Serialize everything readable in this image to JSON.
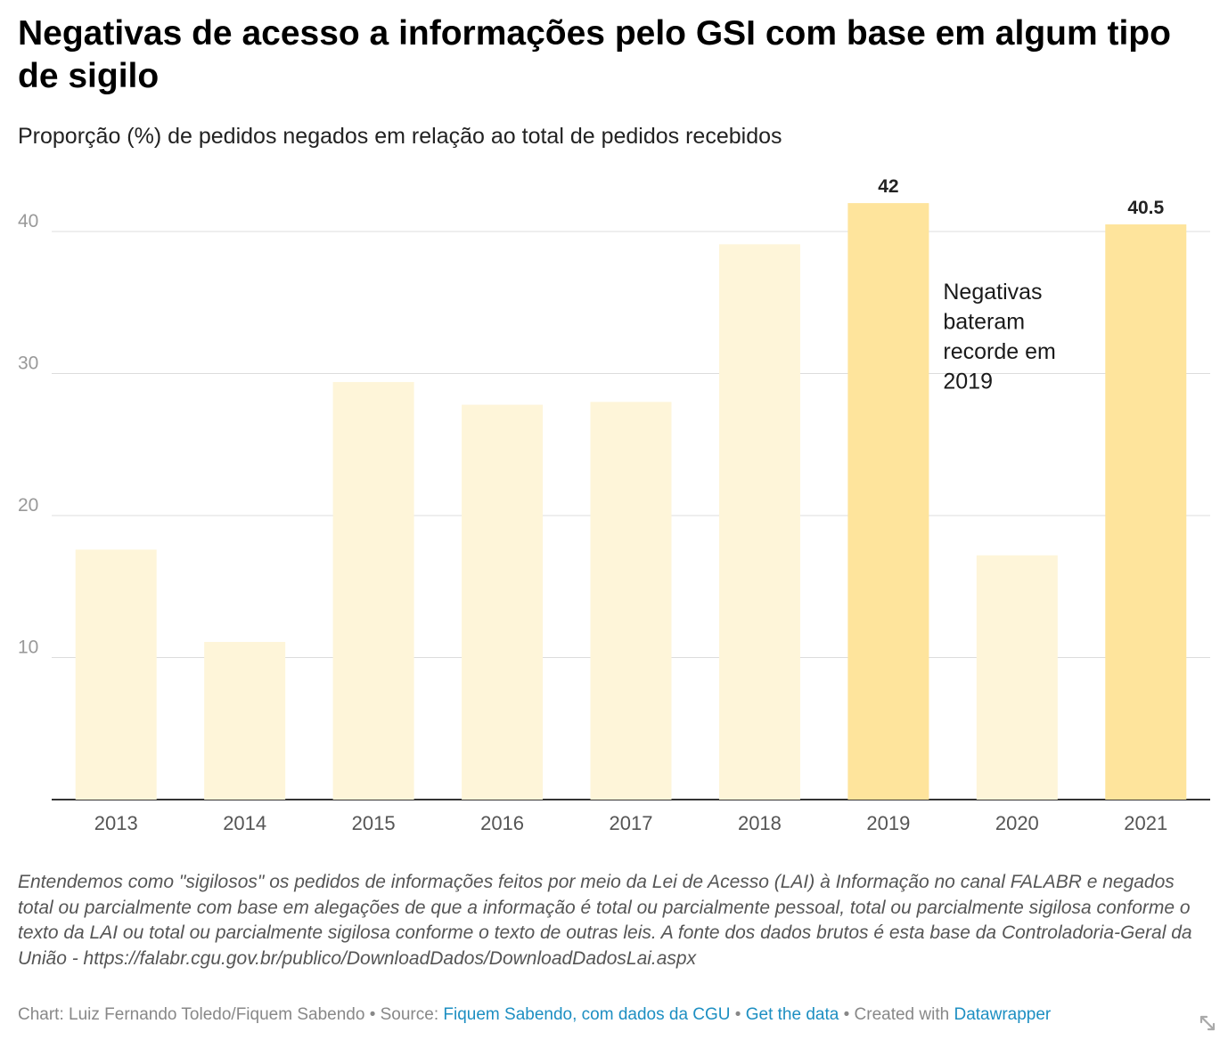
{
  "title": "Negativas de acesso a informações pelo GSI com base em algum tipo de sigilo",
  "subtitle": "Proporção (%) de pedidos negados em relação ao total de pedidos recebidos",
  "chart_data": {
    "type": "bar",
    "categories": [
      "2013",
      "2014",
      "2015",
      "2016",
      "2017",
      "2018",
      "2019",
      "2020",
      "2021"
    ],
    "values": [
      17.6,
      11.1,
      29.4,
      27.8,
      28.0,
      39.1,
      42,
      17.2,
      40.5
    ],
    "highlighted": [
      "2019",
      "2021"
    ],
    "data_labels": [
      {
        "category": "2019",
        "text": "42"
      },
      {
        "category": "2021",
        "text": "40.5"
      }
    ],
    "yticks": [
      10,
      20,
      30,
      40
    ],
    "ylim": [
      0,
      45
    ],
    "xlabel": "",
    "ylabel": "",
    "grid": true,
    "colors": {
      "base": "#fef5d9",
      "highlight": "#fee49c",
      "grid": "#dcdcdc",
      "axis": "#333333",
      "tick_label": "#999999",
      "category_label": "#555555"
    },
    "annotation": {
      "category": "2019",
      "value": 35,
      "lines": [
        "Negativas",
        "bateram",
        "recorde em",
        "2019"
      ]
    }
  },
  "notes": "Entendemos como \"sigilosos\" os pedidos de informações feitos por meio da Lei de Acesso (LAI) à Informação no canal FALABR e negados total ou parcialmente com base em alegações de que a informação é total ou parcialmente pessoal, total ou parcialmente sigilosa conforme o texto da LAI ou total ou parcialmente sigilosa conforme o texto de outras leis. A fonte dos dados brutos é esta base da Controladoria-Geral da União - https://falabr.cgu.gov.br/publico/DownloadDados/DownloadDadosLai.aspx",
  "footer": {
    "chart_credit": "Chart: Luiz Fernando Toledo/Fiquem Sabendo",
    "separator": "•",
    "source_label": "Source:",
    "source_link": "Fiquem Sabendo, com dados da CGU",
    "get_data": "Get the data",
    "created_with": "Created with",
    "datawrapper": "Datawrapper"
  }
}
